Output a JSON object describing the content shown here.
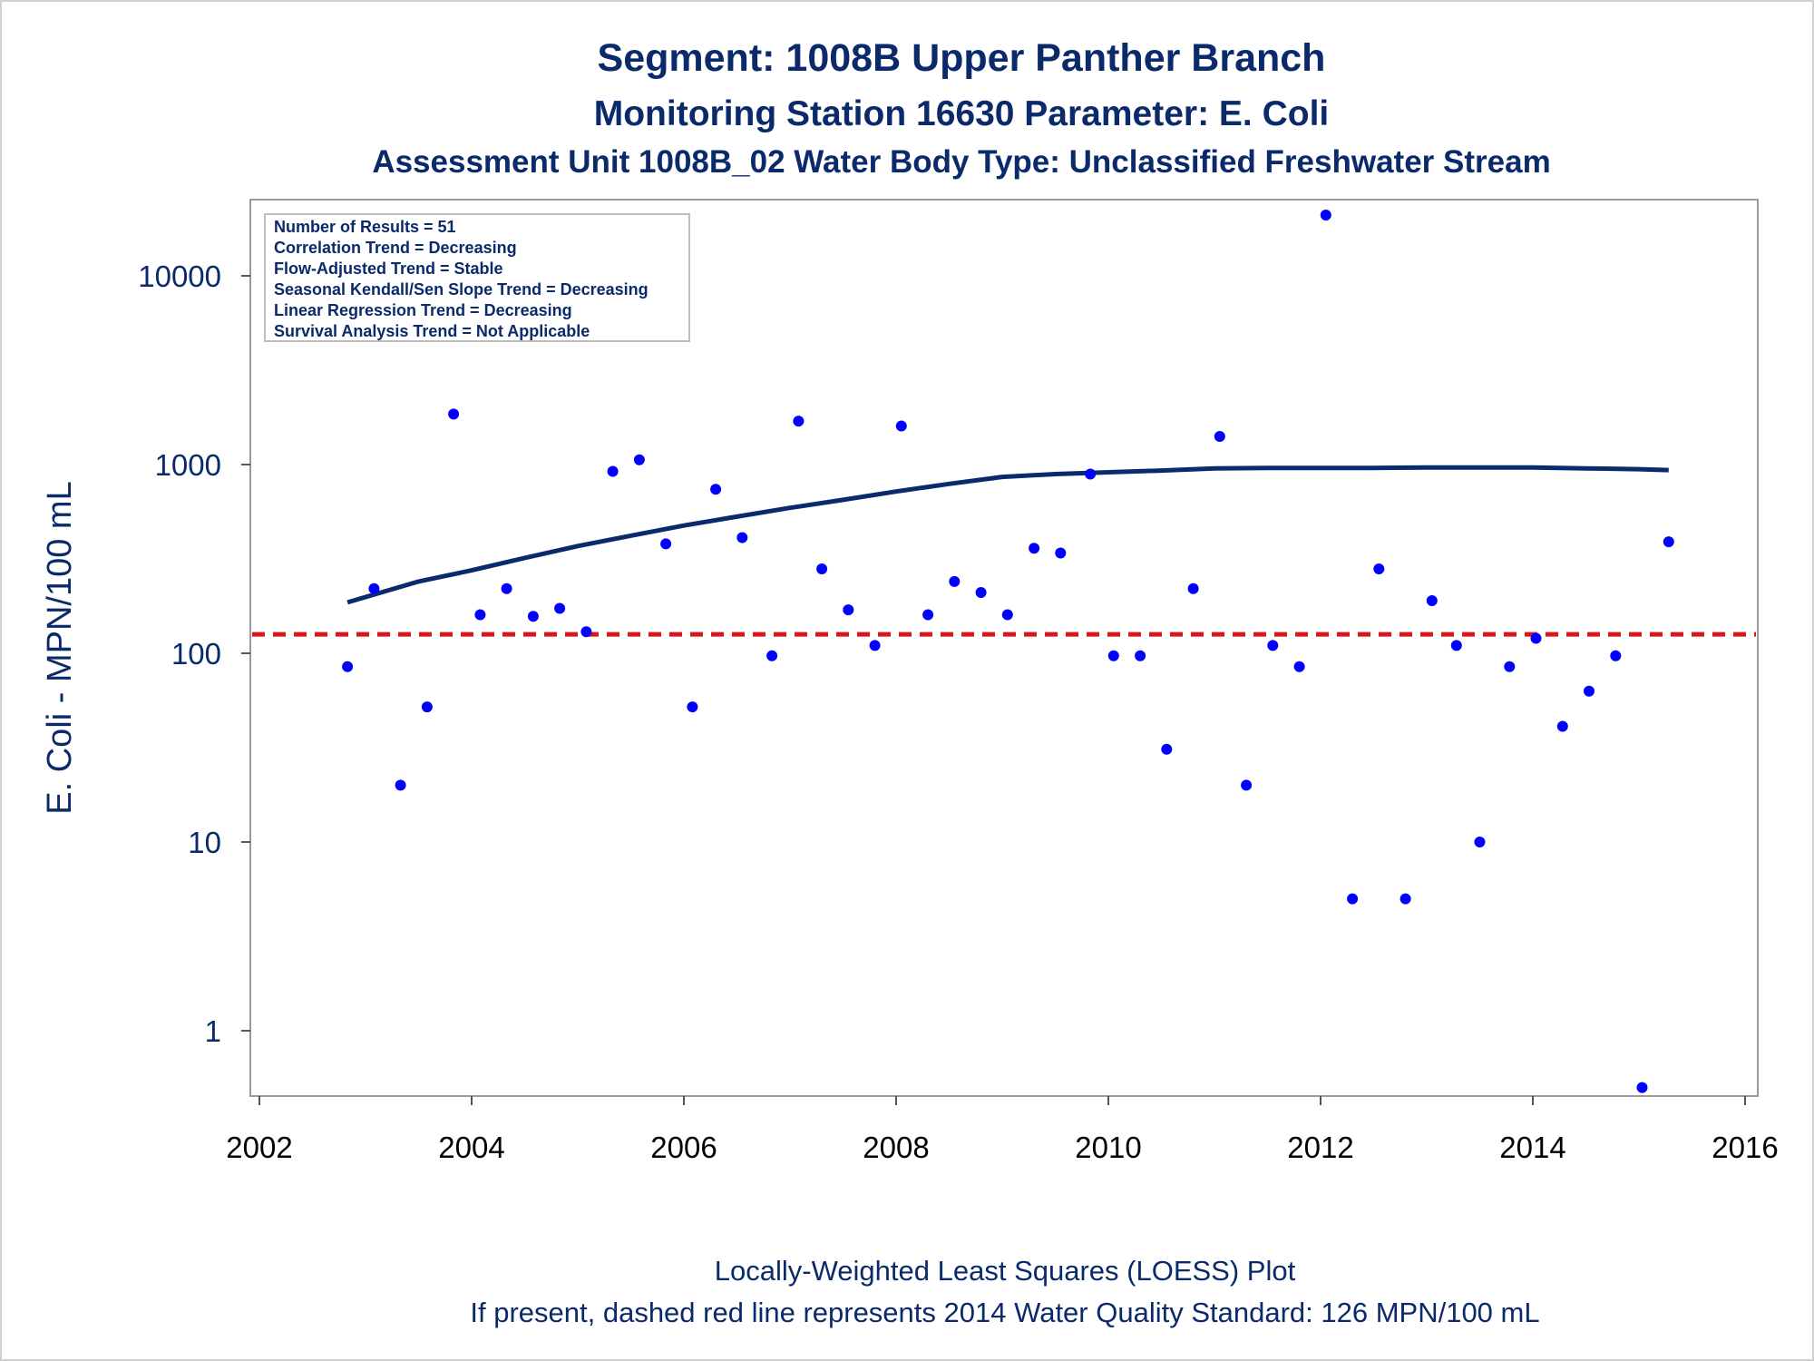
{
  "chart_data": {
    "type": "scatter",
    "title": "Segment: 1008B  Upper Panther Branch",
    "subtitle": "Monitoring Station 16630 Parameter: E. Coli",
    "subtitle2": "Assessment Unit 1008B_02   Water Body Type: Unclassified Freshwater Stream",
    "xlabel": "",
    "ylabel": "E. Coli - MPN/100 mL",
    "y_scale": "log",
    "xlim": [
      2002,
      2016
    ],
    "ylim": [
      0.45,
      25000
    ],
    "x_ticks": [
      2002,
      2004,
      2006,
      2008,
      2010,
      2012,
      2014,
      2016
    ],
    "y_ticks": [
      1,
      10,
      100,
      1000,
      10000
    ],
    "grid": false,
    "stats_box": [
      "Number of Results = 51",
      "Correlation Trend = Decreasing",
      "Flow-Adjusted Trend = Stable",
      "Seasonal Kendall/Sen Slope Trend = Decreasing",
      "Linear Regression Trend = Decreasing",
      "Survival Analysis Trend = Not Applicable"
    ],
    "points": {
      "color": "#0000ff",
      "x": [
        2002.83,
        2003.08,
        2003.33,
        2003.58,
        2003.83,
        2004.08,
        2004.33,
        2004.58,
        2004.83,
        2005.08,
        2005.33,
        2005.58,
        2005.83,
        2006.08,
        2006.3,
        2006.55,
        2006.83,
        2007.08,
        2007.3,
        2007.55,
        2007.8,
        2008.05,
        2008.3,
        2008.55,
        2008.8,
        2009.05,
        2009.3,
        2009.55,
        2009.83,
        2010.05,
        2010.3,
        2010.55,
        2010.8,
        2011.05,
        2011.3,
        2011.55,
        2011.8,
        2012.05,
        2012.3,
        2012.55,
        2012.8,
        2013.05,
        2013.28,
        2013.5,
        2013.78,
        2014.03,
        2014.28,
        2014.53,
        2014.78,
        2015.03,
        2015.28
      ],
      "y": [
        85,
        220,
        20,
        52,
        1850,
        160,
        220,
        157,
        173,
        130,
        920,
        1060,
        380,
        52,
        740,
        410,
        97,
        1700,
        280,
        170,
        110,
        1600,
        160,
        240,
        210,
        160,
        360,
        340,
        890,
        97,
        97,
        31,
        220,
        1410,
        20,
        110,
        85,
        21000,
        5,
        280,
        5,
        190,
        110,
        10,
        85,
        120,
        41,
        63,
        97,
        0.5,
        390
      ]
    },
    "loess": {
      "color": "#0b2a6b",
      "x": [
        2002.83,
        2003.5,
        2004.0,
        2004.5,
        2005.0,
        2005.5,
        2006.0,
        2006.5,
        2007.0,
        2007.5,
        2008.0,
        2008.5,
        2009.0,
        2009.5,
        2010.0,
        2010.5,
        2011.0,
        2011.5,
        2012.0,
        2012.5,
        2013.0,
        2013.5,
        2014.0,
        2014.5,
        2015.0,
        2015.28
      ],
      "y": [
        186,
        240,
        275,
        320,
        370,
        420,
        475,
        530,
        590,
        650,
        720,
        790,
        860,
        890,
        910,
        930,
        955,
        960,
        960,
        960,
        965,
        965,
        965,
        955,
        945,
        935
      ]
    },
    "standard_line": {
      "value": 126,
      "color": "#d9161a",
      "style": "dashed"
    },
    "footnote": [
      "Locally-Weighted Least Squares (LOESS) Plot",
      "If present, dashed red line represents 2014 Water Quality Standard: 126 MPN/100 mL"
    ]
  }
}
